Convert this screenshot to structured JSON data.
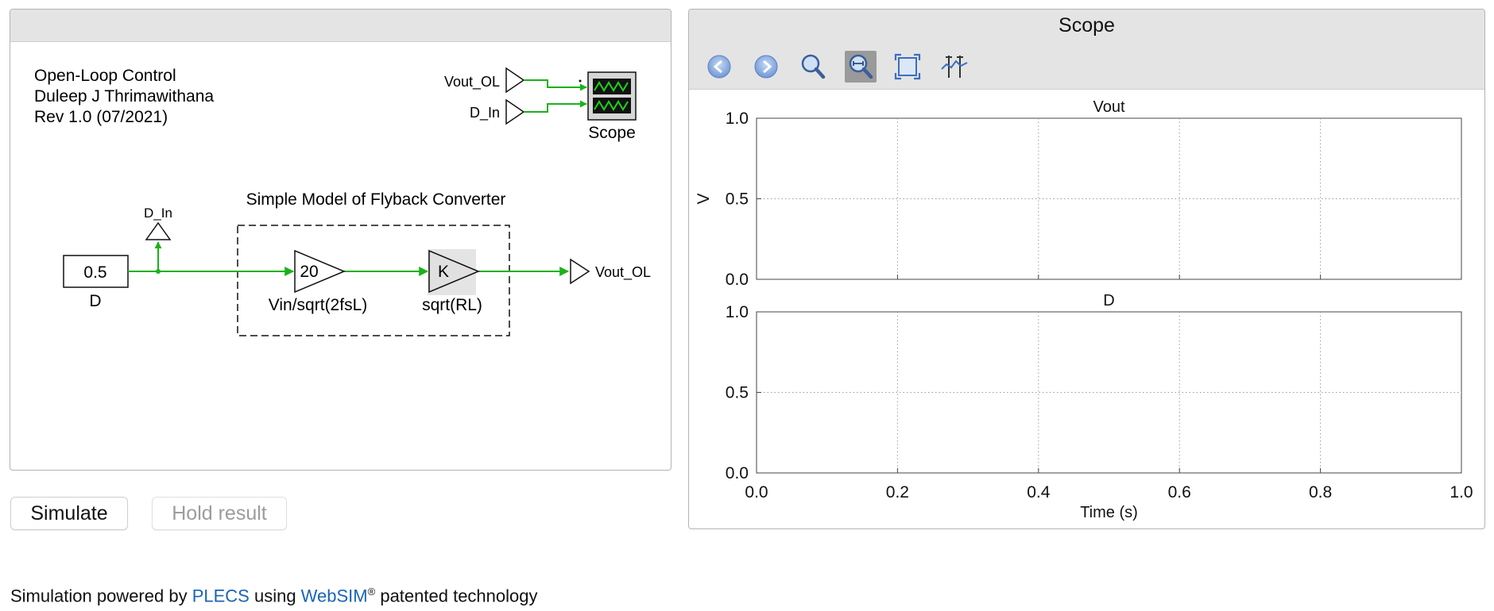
{
  "model": {
    "info_lines": [
      "Open-Loop Control",
      "Duleep J Thrimawithana",
      "Rev 1.0 (07/2021)"
    ],
    "subsystem_title": "Simple Model of Flyback Converter",
    "constant_value": "0.5",
    "constant_label": "D",
    "d_in_tag": "D_In",
    "gain1_value": "20",
    "gain1_label": "Vin/sqrt(2fsL)",
    "gain2_value": "K",
    "gain2_label": "sqrt(RL)",
    "goto_out_label": "Vout_OL",
    "scope_in1_label": "Vout_OL",
    "scope_in2_label": "D_In",
    "scope_block_label": "Scope",
    "wire_color": "#1ab21a"
  },
  "scope": {
    "title": "Scope",
    "toolbar": [
      {
        "name": "back-icon",
        "tooltip": "Back"
      },
      {
        "name": "forward-icon",
        "tooltip": "Forward"
      },
      {
        "name": "zoom-icon",
        "tooltip": "Zoom"
      },
      {
        "name": "zoom-x-icon",
        "tooltip": "Zoom X",
        "active": true
      },
      {
        "name": "fit-to-view-icon",
        "tooltip": "Zoom to fit"
      },
      {
        "name": "cursor-icon",
        "tooltip": "Cursors"
      }
    ]
  },
  "chart_data": [
    {
      "type": "line",
      "title": "Vout",
      "ylabel": "V",
      "xlabel": "",
      "xlim": [
        0.0,
        1.0
      ],
      "ylim": [
        0.0,
        1.0
      ],
      "x_ticks": [
        "0.0",
        "0.2",
        "0.4",
        "0.6",
        "0.8",
        "1.0"
      ],
      "y_ticks": [
        "0.0",
        "0.5",
        "1.0"
      ],
      "grid": true,
      "series": []
    },
    {
      "type": "line",
      "title": "D",
      "ylabel": "",
      "xlabel": "Time (s)",
      "xlim": [
        0.0,
        1.0
      ],
      "ylim": [
        0.0,
        1.0
      ],
      "x_ticks": [
        "0.0",
        "0.2",
        "0.4",
        "0.6",
        "0.8",
        "1.0"
      ],
      "y_ticks": [
        "0.0",
        "0.5",
        "1.0"
      ],
      "grid": true,
      "series": []
    }
  ],
  "buttons": {
    "simulate": "Simulate",
    "hold": "Hold result"
  },
  "footer": {
    "prefix": "Simulation powered by ",
    "plecs": "PLECS",
    "middle": " using ",
    "websim": "WebSIM",
    "reg": "®",
    "suffix": " patented technology"
  }
}
